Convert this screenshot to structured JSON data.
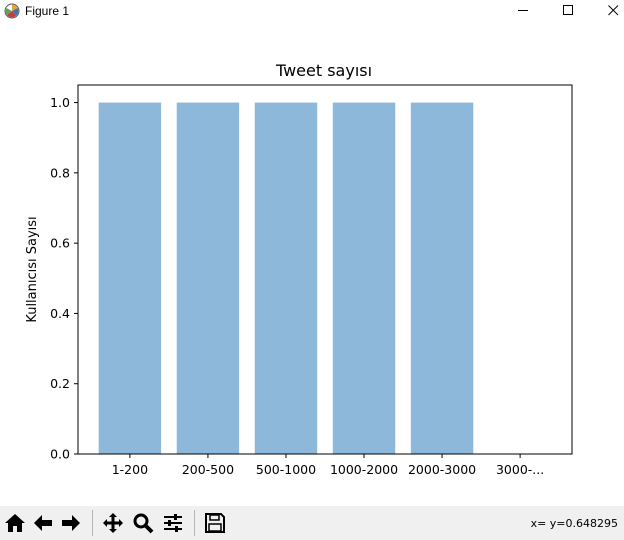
{
  "window": {
    "title": "Figure 1",
    "icon": "matplotlib-icon",
    "controls": [
      "minimize-icon",
      "maximize-icon",
      "close-icon"
    ]
  },
  "chart_data": {
    "type": "bar",
    "title": "Tweet sayısı",
    "xlabel": "",
    "ylabel": "Kullanıcısı Sayısı",
    "categories": [
      "1-200",
      "200-500",
      "500-1000",
      "1000-2000",
      "2000-3000",
      "3000-..."
    ],
    "values": [
      1.0,
      1.0,
      1.0,
      1.0,
      1.0,
      0.0
    ],
    "ylim": [
      0.0,
      1.0
    ],
    "yticks": [
      "0.0",
      "0.2",
      "0.4",
      "0.6",
      "0.8",
      "1.0"
    ],
    "bar_color": "#8db8d9",
    "grid": false
  },
  "toolbar": {
    "buttons": [
      {
        "name": "home-button",
        "icon": "home-icon"
      },
      {
        "name": "back-button",
        "icon": "arrow-left-icon"
      },
      {
        "name": "forward-button",
        "icon": "arrow-right-icon"
      },
      {
        "name": "pan-button",
        "icon": "move-icon"
      },
      {
        "name": "zoom-button",
        "icon": "magnifier-icon"
      },
      {
        "name": "configure-subplots-button",
        "icon": "sliders-icon"
      },
      {
        "name": "save-button",
        "icon": "floppy-icon"
      }
    ],
    "coordinates": "x= y=0.648295"
  }
}
